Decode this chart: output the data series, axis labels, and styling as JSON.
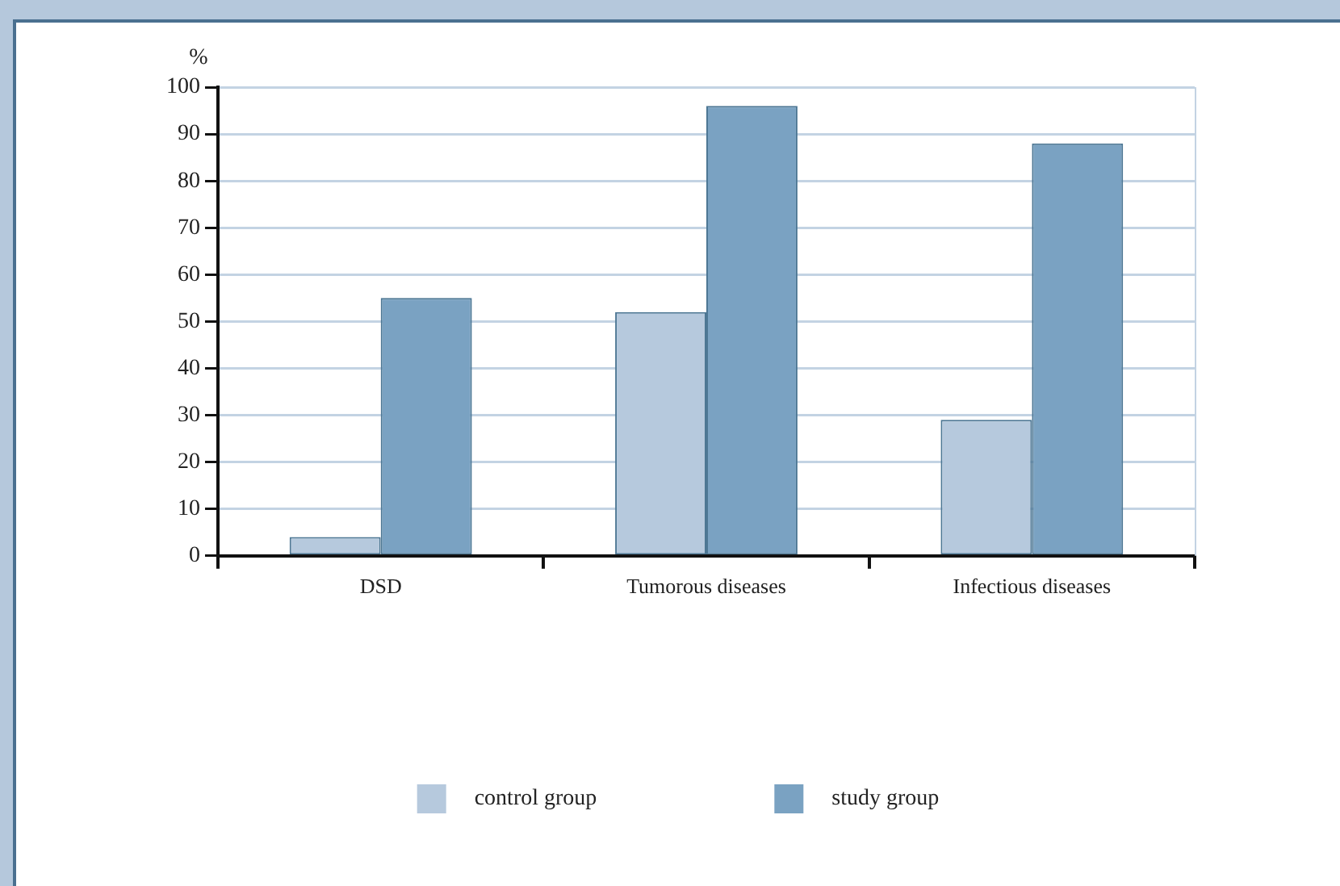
{
  "chart_data": {
    "type": "bar",
    "ylabel": "%",
    "categories": [
      "DSD",
      "Tumorous diseases",
      "Infectious diseases"
    ],
    "series": [
      {
        "name": "control group",
        "color": "#b6c9dd",
        "values": [
          4,
          52,
          29
        ]
      },
      {
        "name": "study group",
        "color": "#7aa2c2",
        "values": [
          55,
          96,
          88
        ]
      }
    ],
    "ylim": [
      0,
      100
    ],
    "yticks": [
      0,
      10,
      20,
      30,
      40,
      50,
      60,
      70,
      80,
      90,
      100
    ],
    "grid": "y",
    "legend": "bottom"
  }
}
